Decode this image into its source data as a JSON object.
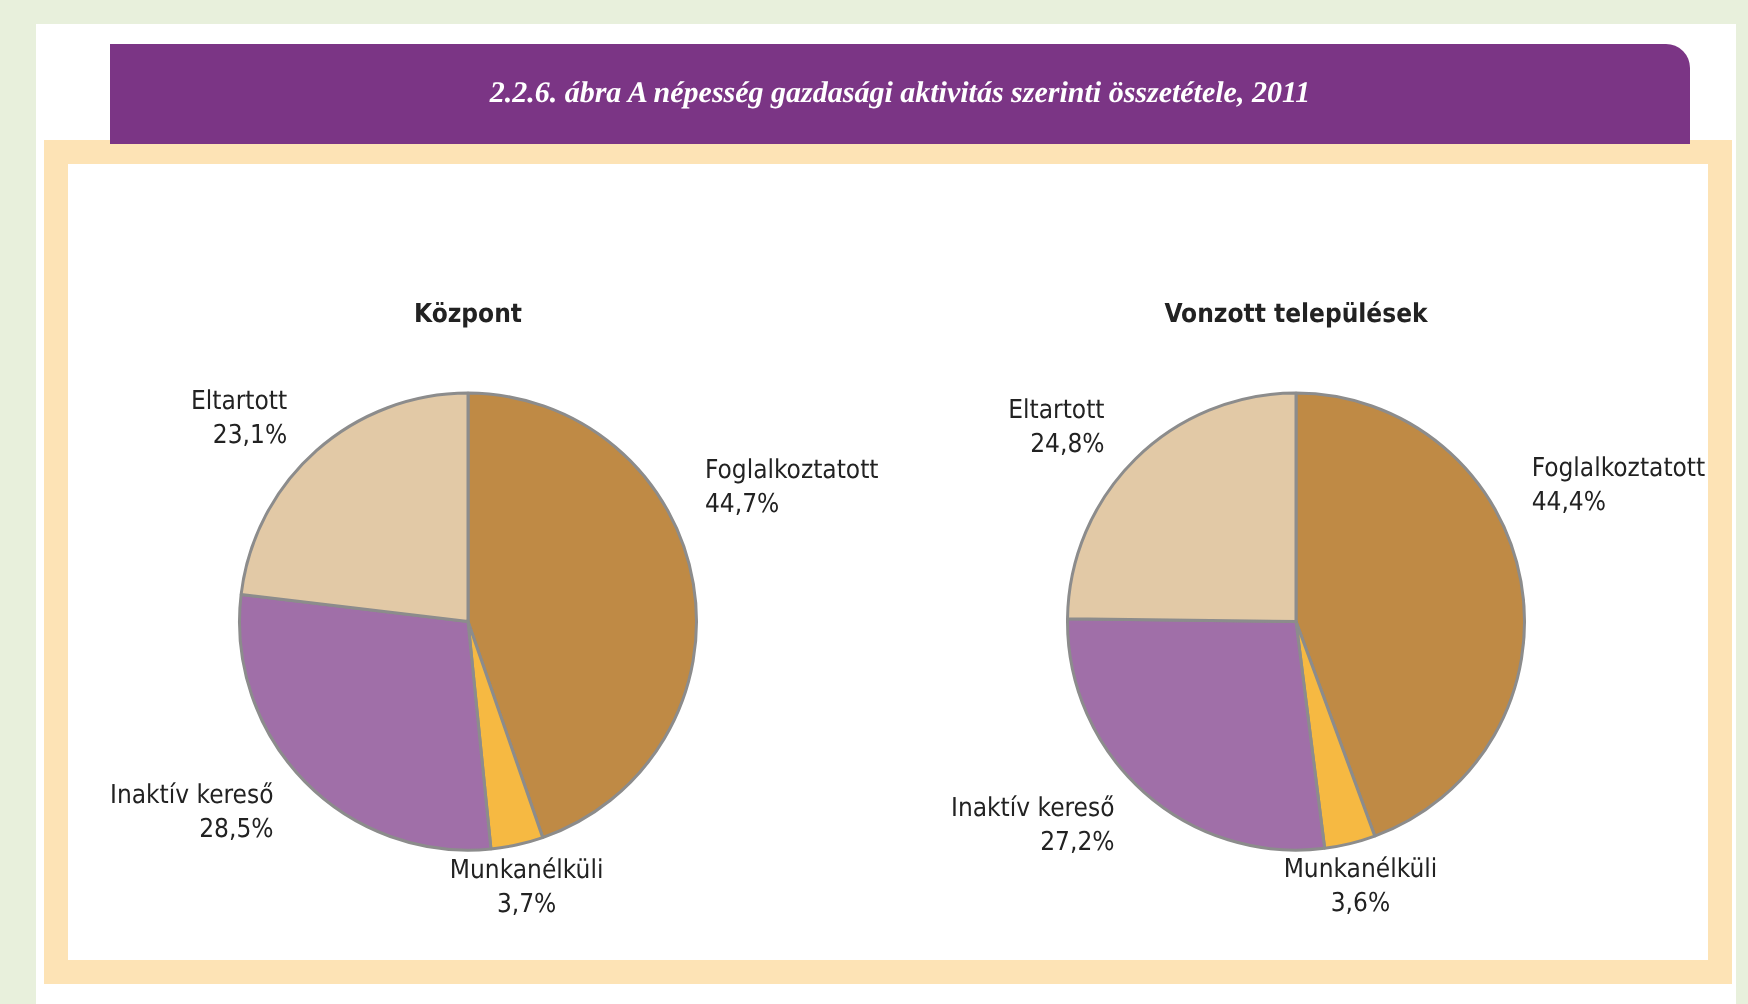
{
  "chart_data": [
    {
      "type": "pie",
      "title": "2.2.6. ábra A népesség gazdasági aktivitás szerinti összetétele, 2011",
      "subtitle": "Központ",
      "categories": [
        "Foglalkoztatott",
        "Munkanélküli",
        "Inaktív kereső",
        "Eltartott"
      ],
      "values": [
        44.7,
        3.7,
        28.5,
        23.1
      ],
      "colors": [
        "#bf8a45",
        "#f6b942",
        "#a06fa8",
        "#e2c9a6"
      ],
      "value_labels": [
        "44,7%",
        "3,7%",
        "28,5%",
        "23,1%"
      ]
    },
    {
      "type": "pie",
      "subtitle": "Vonzott települések",
      "categories": [
        "Foglalkoztatott",
        "Munkanélküli",
        "Inaktív kereső",
        "Eltartott"
      ],
      "values": [
        44.4,
        3.6,
        27.2,
        24.8
      ],
      "colors": [
        "#bf8a45",
        "#f6b942",
        "#a06fa8",
        "#e2c9a6"
      ],
      "value_labels": [
        "44,4%",
        "3,6%",
        "27,2%",
        "24,8%"
      ]
    }
  ]
}
